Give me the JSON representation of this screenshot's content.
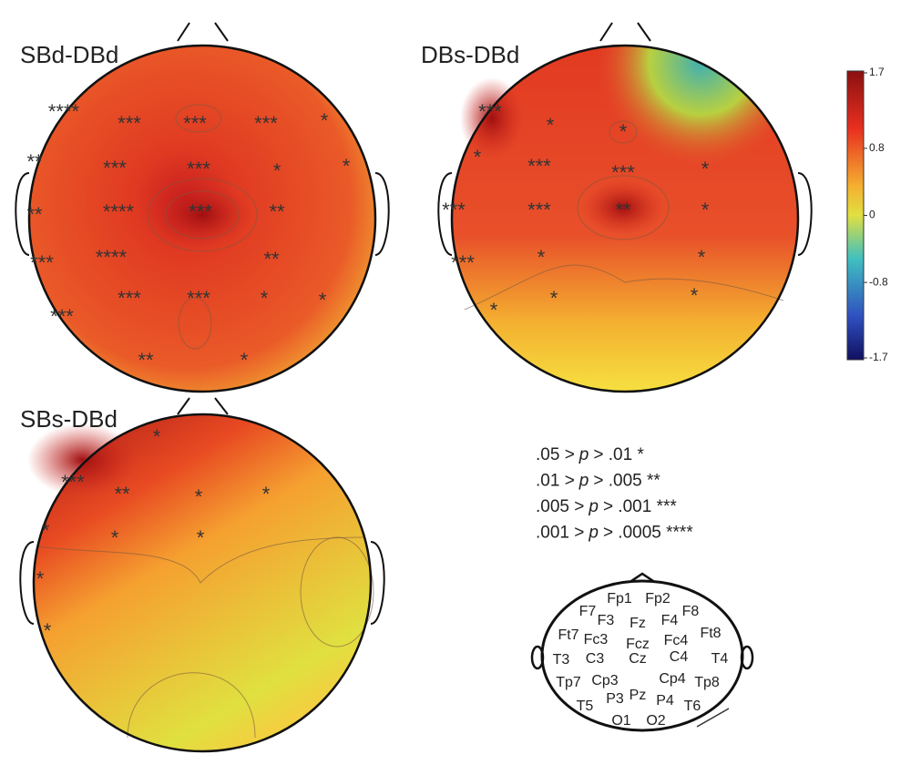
{
  "maps": [
    {
      "title": "SBd-DBd",
      "marks": [
        "****",
        "***",
        "***",
        "***",
        "*",
        "**",
        "***",
        "***",
        "*",
        "*",
        "**",
        "****",
        "***",
        "**",
        "***",
        "****",
        "**",
        "***",
        "***",
        "*",
        "*",
        "***",
        "**",
        "*"
      ]
    },
    {
      "title": "DBs-DBd",
      "marks": [
        "***",
        "*",
        "*",
        "*",
        "***",
        "***",
        "*",
        "***",
        "***",
        "**",
        "*",
        "***",
        "*",
        "*",
        "*",
        "*",
        "*"
      ]
    },
    {
      "title": "SBs-DBd",
      "marks": [
        "*",
        "***",
        "**",
        "*",
        "*",
        "*",
        "*",
        "*",
        "*",
        "*"
      ]
    }
  ],
  "colorbar": {
    "ticks": [
      1.7,
      0.8,
      0,
      -0.8,
      -1.7
    ]
  },
  "legend": [
    {
      "left": ".05 >",
      "p": "p",
      "right": "> .01 *"
    },
    {
      "left": ".01 >",
      "p": "p",
      "right": "> .005 **"
    },
    {
      "left": ".005 >",
      "p": "p",
      "right": "> .001 ***"
    },
    {
      "left": ".001 >",
      "p": "p",
      "right": "> .0005 ****"
    }
  ],
  "electrodes": [
    "Fp1",
    "Fp2",
    "F7",
    "F3",
    "Fz",
    "F4",
    "F8",
    "Ft7",
    "Fc3",
    "Fcz",
    "Fc4",
    "Ft8",
    "T3",
    "C3",
    "Cz",
    "C4",
    "T4",
    "Tp7",
    "Cp3",
    "Cp4",
    "Tp8",
    "P3",
    "Pz",
    "P4",
    "T5",
    "T6",
    "O1",
    "O2"
  ]
}
